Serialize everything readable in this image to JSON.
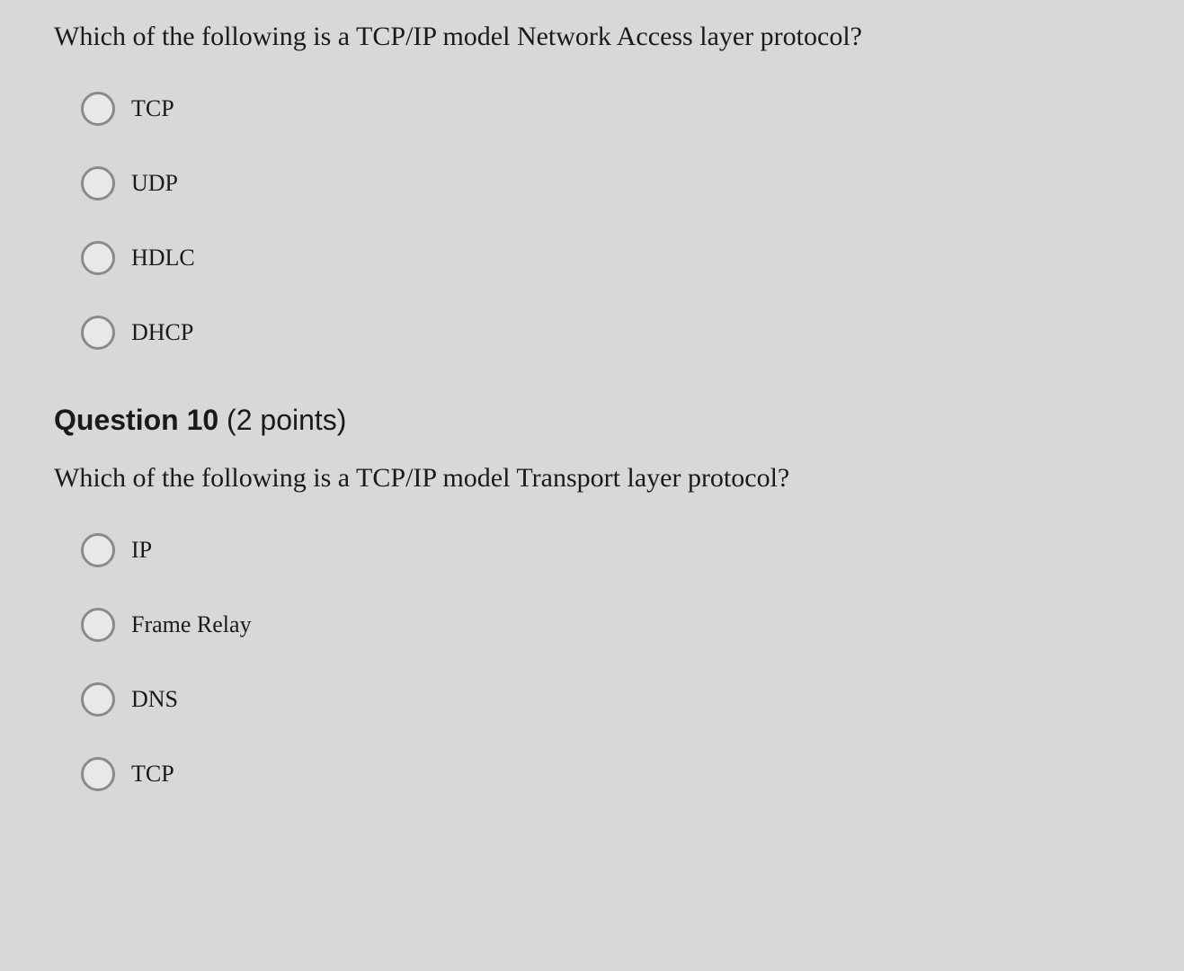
{
  "question1": {
    "text": "Which of the following is a TCP/IP model Network Access layer protocol?",
    "options": [
      {
        "label": "TCP"
      },
      {
        "label": "UDP"
      },
      {
        "label": "HDLC"
      },
      {
        "label": "DHCP"
      }
    ]
  },
  "question2": {
    "header_number": "Question 10",
    "header_points": " (2 points)",
    "text": "Which of the following is a TCP/IP model Transport layer protocol?",
    "options": [
      {
        "label": "IP"
      },
      {
        "label": "Frame Relay"
      },
      {
        "label": "DNS"
      },
      {
        "label": "TCP"
      }
    ]
  },
  "colors": {
    "background": "#d8d8d8",
    "text": "#1a1a1a",
    "radio_border": "#8a8a8a",
    "radio_fill": "#e8e8e8"
  },
  "typography": {
    "question_fontsize": 30,
    "option_fontsize": 26,
    "header_fontsize": 32,
    "font_family_serif": "Georgia",
    "font_family_sans": "Arial"
  }
}
